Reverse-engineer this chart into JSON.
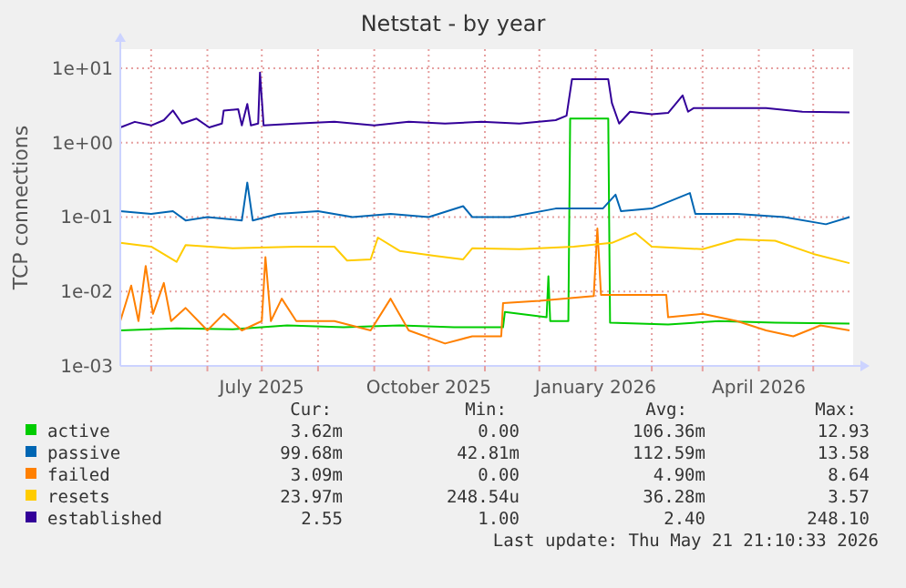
{
  "chart_data": {
    "type": "line",
    "title": "Netstat - by year",
    "ylabel": "TCP connections",
    "log": "y",
    "grid": true,
    "legend": "bottom",
    "xlim": [
      "2025-04-14",
      "2026-05-23"
    ],
    "xticks": [
      {
        "value": "2025-05-01",
        "label": null
      },
      {
        "value": "2025-06-01",
        "label": null
      },
      {
        "value": "2025-07-01",
        "label": "July 2025"
      },
      {
        "value": "2025-08-01",
        "label": null
      },
      {
        "value": "2025-09-01",
        "label": null
      },
      {
        "value": "2025-10-01",
        "label": "October 2025"
      },
      {
        "value": "2025-11-01",
        "label": null
      },
      {
        "value": "2025-12-01",
        "label": null
      },
      {
        "value": "2026-01-01",
        "label": "January 2026"
      },
      {
        "value": "2026-02-01",
        "label": null
      },
      {
        "value": "2026-03-01",
        "label": null
      },
      {
        "value": "2026-04-01",
        "label": "April 2026"
      },
      {
        "value": "2026-05-01",
        "label": null
      }
    ],
    "ylim": [
      0.001,
      18
    ],
    "yticks": [
      {
        "value": 0.001,
        "label": "1e-03"
      },
      {
        "value": 0.01,
        "label": "1e-02"
      },
      {
        "value": 0.1,
        "label": "1e-01"
      },
      {
        "value": 1,
        "label": "1e+00"
      },
      {
        "value": 10,
        "label": "1e+01"
      }
    ],
    "series": [
      {
        "name": "active",
        "color": "#00cc00",
        "x": [
          "2025-04-14",
          "2025-05-15",
          "2025-06-15",
          "2025-07-15",
          "2025-08-15",
          "2025-09-15",
          "2025-10-15",
          "2025-11-11",
          "2025-11-12",
          "2025-12-05",
          "2025-12-06",
          "2025-12-07",
          "2025-12-17",
          "2025-12-18",
          "2026-01-08",
          "2026-01-09",
          "2026-02-10",
          "2026-03-10",
          "2026-04-10",
          "2026-05-21"
        ],
        "values": [
          0.003,
          0.0032,
          0.0031,
          0.0035,
          0.0033,
          0.0035,
          0.0033,
          0.0033,
          0.0053,
          0.0045,
          0.016,
          0.004,
          0.004,
          2.1,
          2.1,
          0.0038,
          0.0036,
          0.004,
          0.0038,
          0.0037
        ]
      },
      {
        "name": "passive",
        "color": "#0066b3",
        "x": [
          "2025-04-14",
          "2025-05-01",
          "2025-05-13",
          "2025-05-20",
          "2025-06-01",
          "2025-06-20",
          "2025-06-23",
          "2025-06-26",
          "2025-07-10",
          "2025-08-01",
          "2025-08-20",
          "2025-09-10",
          "2025-10-01",
          "2025-10-20",
          "2025-10-25",
          "2025-11-15",
          "2025-12-10",
          "2026-01-05",
          "2026-01-12",
          "2026-01-15",
          "2026-02-01",
          "2026-02-22",
          "2026-02-25",
          "2026-03-20",
          "2026-04-15",
          "2026-05-08",
          "2026-05-21"
        ],
        "values": [
          0.12,
          0.11,
          0.12,
          0.09,
          0.1,
          0.09,
          0.29,
          0.09,
          0.11,
          0.12,
          0.1,
          0.11,
          0.1,
          0.14,
          0.1,
          0.1,
          0.13,
          0.13,
          0.2,
          0.12,
          0.13,
          0.21,
          0.11,
          0.11,
          0.1,
          0.08,
          0.1
        ]
      },
      {
        "name": "failed",
        "color": "#ff8000",
        "x": [
          "2025-04-14",
          "2025-04-20",
          "2025-04-24",
          "2025-04-28",
          "2025-05-02",
          "2025-05-08",
          "2025-05-12",
          "2025-05-20",
          "2025-06-01",
          "2025-06-10",
          "2025-06-20",
          "2025-07-01",
          "2025-07-03",
          "2025-07-06",
          "2025-07-12",
          "2025-07-20",
          "2025-08-10",
          "2025-08-30",
          "2025-09-10",
          "2025-09-20",
          "2025-10-10",
          "2025-10-25",
          "2025-11-10",
          "2025-11-11",
          "2025-12-01",
          "2025-12-31",
          "2026-01-02",
          "2026-01-04",
          "2026-02-09",
          "2026-02-10",
          "2026-03-01",
          "2026-03-20",
          "2026-04-05",
          "2026-04-20",
          "2026-05-05",
          "2026-05-21"
        ],
        "values": [
          0.004,
          0.012,
          0.004,
          0.022,
          0.005,
          0.013,
          0.004,
          0.006,
          0.003,
          0.005,
          0.003,
          0.004,
          0.029,
          0.004,
          0.008,
          0.004,
          0.004,
          0.003,
          0.008,
          0.003,
          0.002,
          0.0025,
          0.0025,
          0.007,
          0.0075,
          0.0087,
          0.07,
          0.009,
          0.009,
          0.0045,
          0.005,
          0.004,
          0.003,
          0.0025,
          0.0035,
          0.003
        ]
      },
      {
        "name": "resets",
        "color": "#ffcc00",
        "x": [
          "2025-04-14",
          "2025-05-01",
          "2025-05-15",
          "2025-05-20",
          "2025-06-15",
          "2025-07-20",
          "2025-08-10",
          "2025-08-17",
          "2025-08-30",
          "2025-09-03",
          "2025-09-15",
          "2025-10-05",
          "2025-10-20",
          "2025-10-25",
          "2025-11-20",
          "2025-12-20",
          "2026-01-10",
          "2026-01-23",
          "2026-02-01",
          "2026-03-01",
          "2026-03-20",
          "2026-04-10",
          "2026-05-01",
          "2026-05-21"
        ],
        "values": [
          0.045,
          0.04,
          0.025,
          0.042,
          0.038,
          0.04,
          0.04,
          0.026,
          0.027,
          0.053,
          0.035,
          0.03,
          0.027,
          0.038,
          0.037,
          0.04,
          0.045,
          0.061,
          0.04,
          0.037,
          0.05,
          0.048,
          0.032,
          0.024
        ]
      },
      {
        "name": "established",
        "color": "#330099",
        "x": [
          "2025-04-14",
          "2025-04-22",
          "2025-05-01",
          "2025-05-08",
          "2025-05-13",
          "2025-05-18",
          "2025-05-26",
          "2025-06-02",
          "2025-06-09",
          "2025-06-10",
          "2025-06-18",
          "2025-06-20",
          "2025-06-23",
          "2025-06-25",
          "2025-06-29",
          "2025-06-30",
          "2025-07-02",
          "2025-07-20",
          "2025-08-10",
          "2025-09-01",
          "2025-09-20",
          "2025-10-10",
          "2025-10-30",
          "2025-11-20",
          "2025-12-10",
          "2025-12-16",
          "2025-12-19",
          "2026-01-08",
          "2026-01-10",
          "2026-01-14",
          "2026-01-20",
          "2026-02-01",
          "2026-02-10",
          "2026-02-18",
          "2026-02-21",
          "2026-02-24",
          "2026-03-15",
          "2026-04-05",
          "2026-04-25",
          "2026-05-21"
        ],
        "values": [
          1.6,
          1.9,
          1.7,
          2.0,
          2.7,
          1.8,
          2.1,
          1.6,
          1.8,
          2.7,
          2.8,
          1.7,
          3.3,
          1.7,
          1.8,
          8.7,
          1.7,
          1.8,
          1.9,
          1.7,
          1.9,
          1.8,
          1.9,
          1.8,
          2.0,
          2.3,
          7.1,
          7.1,
          3.4,
          1.8,
          2.6,
          2.4,
          2.5,
          4.3,
          2.6,
          2.9,
          2.9,
          2.9,
          2.6,
          2.55
        ]
      }
    ],
    "annotations": [
      "Cur:",
      "Min:",
      "Avg:",
      "Max:",
      "3.62m",
      "0.00",
      "106.36m",
      "12.93",
      "99.68m",
      "42.81m",
      "112.59m",
      "13.58",
      "3.09m",
      "0.00",
      "4.90m",
      "8.64",
      "23.97m",
      "248.54u",
      "36.28m",
      "3.57",
      "2.55",
      "1.00",
      "2.40",
      "248.10",
      "Last update: Thu May 21 21:10:33 2026"
    ]
  }
}
